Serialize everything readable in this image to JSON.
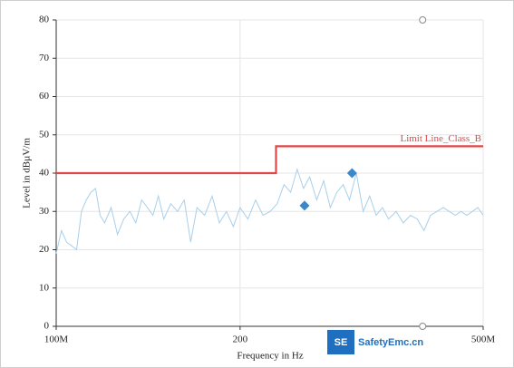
{
  "chart_data": {
    "type": "line",
    "xscale": "log",
    "xlabel": "Frequency in Hz",
    "ylabel": "Level in dBµV/m",
    "xlim": [
      100,
      500
    ],
    "ylim": [
      0,
      80
    ],
    "xticks": [
      {
        "value": 100,
        "label": "100M"
      },
      200,
      {
        "value": 500,
        "label": "500M"
      }
    ],
    "yticks": [
      0,
      10,
      20,
      30,
      40,
      50,
      60,
      70,
      80
    ],
    "grid": true,
    "series": [
      {
        "color": "#a9cfea",
        "x": [
          100,
          102,
          104,
          106,
          108,
          110,
          112,
          114,
          116,
          118,
          120,
          123,
          126,
          129,
          132,
          135,
          138,
          141,
          144,
          147,
          150,
          154,
          158,
          162,
          166,
          170,
          175,
          180,
          185,
          190,
          195,
          200,
          206,
          212,
          218,
          224,
          230,
          236,
          242,
          248,
          254,
          260,
          267,
          274,
          281,
          288,
          295,
          302,
          310,
          318,
          326,
          334,
          342,
          350,
          360,
          370,
          380,
          390,
          400,
          410,
          420,
          430,
          440,
          450,
          460,
          470,
          480,
          490,
          500
        ],
        "values": [
          19,
          25,
          22,
          21,
          20,
          30,
          33,
          35,
          36,
          29,
          27,
          31,
          24,
          28,
          30,
          27,
          33,
          31,
          29,
          34,
          28,
          32,
          30,
          33,
          22,
          31,
          29,
          34,
          27,
          30,
          26,
          31,
          28,
          33,
          29,
          30,
          32,
          37,
          35,
          41,
          36,
          39,
          33,
          38,
          31,
          35,
          37,
          33,
          40,
          30,
          34,
          29,
          31,
          28,
          30,
          27,
          29,
          28,
          25,
          29,
          30,
          31,
          30,
          29,
          30,
          29,
          30,
          31,
          29
        ]
      },
      {
        "name": "Limit Line_Class_B",
        "color": "#e04848",
        "x": [
          100,
          229,
          229,
          500
        ],
        "values": [
          40,
          40,
          47,
          47
        ]
      }
    ],
    "peaks": {
      "color": "#3a87c9",
      "x": [
        255,
        305
      ],
      "values": [
        31.5,
        40
      ]
    },
    "cursors": {
      "color": "#8a8a8a",
      "x": [
        398,
        398
      ],
      "values": [
        80,
        0
      ]
    },
    "watermark": {
      "logo": "SE",
      "text": "SafetyEmc.cn"
    }
  }
}
